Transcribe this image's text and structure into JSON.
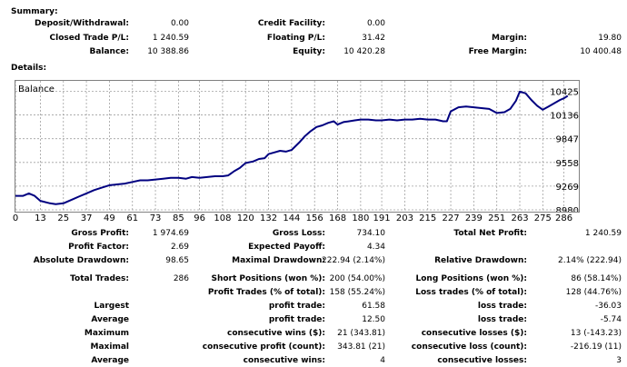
{
  "summary": {
    "title": "Summary:",
    "rows": [
      [
        {
          "label": "Deposit/Withdrawal:",
          "value": "0.00"
        },
        {
          "label": "Credit Facility:",
          "value": "0.00"
        },
        {
          "label": "",
          "value": ""
        }
      ],
      [
        {
          "label": "Closed Trade P/L:",
          "value": "1 240.59"
        },
        {
          "label": "Floating P/L:",
          "value": "31.42"
        },
        {
          "label": "Margin:",
          "value": "19.80"
        }
      ],
      [
        {
          "label": "Balance:",
          "value": "10 388.86"
        },
        {
          "label": "Equity:",
          "value": "10 420.28"
        },
        {
          "label": "Free Margin:",
          "value": "10 400.48"
        }
      ]
    ]
  },
  "details": {
    "title": "Details:",
    "rows": [
      [
        {
          "label": "Gross Profit:",
          "value": "1 974.69"
        },
        {
          "label": "Gross Loss:",
          "value": "734.10"
        },
        {
          "label": "Total Net Profit:",
          "value": "1 240.59"
        }
      ],
      [
        {
          "label": "Profit Factor:",
          "value": "2.69"
        },
        {
          "label": "Expected Payoff:",
          "value": "4.34"
        },
        {
          "label": "",
          "value": ""
        }
      ],
      [
        {
          "label": "Absolute Drawdown:",
          "value": "98.65"
        },
        {
          "label": "Maximal Drawdown:",
          "value": "222.94 (2.14%)"
        },
        {
          "label": "Relative Drawdown:",
          "value": "2.14% (222.94)"
        }
      ]
    ]
  },
  "trades": {
    "rows": [
      [
        {
          "label": "Total Trades:",
          "value": "286"
        },
        {
          "label": "Short Positions (won %):",
          "value": "200 (54.00%)"
        },
        {
          "label": "Long Positions (won %):",
          "value": "86 (58.14%)"
        }
      ],
      [
        {
          "label": "",
          "value": ""
        },
        {
          "label": "Profit Trades (% of total):",
          "value": "158 (55.24%)"
        },
        {
          "label": "Loss trades (% of total):",
          "value": "128 (44.76%)"
        }
      ],
      [
        {
          "label": "Largest",
          "value": ""
        },
        {
          "label": "profit trade:",
          "value": "61.58"
        },
        {
          "label": "loss trade:",
          "value": "-36.03"
        }
      ],
      [
        {
          "label": "Average",
          "value": ""
        },
        {
          "label": "profit trade:",
          "value": "12.50"
        },
        {
          "label": "loss trade:",
          "value": "-5.74"
        }
      ],
      [
        {
          "label": "Maximum",
          "value": ""
        },
        {
          "label": "consecutive wins ($):",
          "value": "21 (343.81)"
        },
        {
          "label": "consecutive losses ($):",
          "value": "13 (-143.23)"
        }
      ],
      [
        {
          "label": "Maximal",
          "value": ""
        },
        {
          "label": "consecutive profit (count):",
          "value": "343.81 (21)"
        },
        {
          "label": "consecutive loss (count):",
          "value": "-216.19 (11)"
        }
      ],
      [
        {
          "label": "Average",
          "value": ""
        },
        {
          "label": "consecutive wins:",
          "value": "4"
        },
        {
          "label": "consecutive losses:",
          "value": "3"
        }
      ]
    ]
  },
  "chart_data": {
    "type": "line",
    "title": "Balance",
    "line_color": "#000080",
    "x_ticks": [
      0,
      13,
      25,
      37,
      49,
      61,
      73,
      85,
      96,
      108,
      120,
      132,
      144,
      156,
      168,
      180,
      191,
      203,
      215,
      227,
      239,
      251,
      263,
      275,
      286
    ],
    "y_ticks": [
      8980,
      9269,
      9558,
      9847,
      10136,
      10425
    ],
    "xlim": [
      0,
      290
    ],
    "ylim": [
      8980,
      10530
    ],
    "series": [
      {
        "x": [
          0,
          4,
          7,
          10,
          13,
          18,
          21,
          25,
          29,
          33,
          37,
          41,
          45,
          49,
          53,
          57,
          61,
          65,
          69,
          73,
          77,
          81,
          85,
          89,
          92,
          96,
          100,
          104,
          108,
          111,
          114,
          117,
          120,
          124,
          127,
          130,
          132,
          135,
          138,
          141,
          144,
          148,
          151,
          154,
          157,
          160,
          163,
          166,
          168,
          171,
          174,
          177,
          180,
          184,
          188,
          191,
          195,
          199,
          203,
          207,
          211,
          215,
          219,
          223,
          225,
          227,
          231,
          235,
          239,
          243,
          247,
          251,
          255,
          258,
          261,
          263,
          266,
          269,
          272,
          275,
          278,
          281,
          284,
          286,
          288
        ],
        "y": [
          9150,
          9150,
          9180,
          9150,
          9090,
          9060,
          9050,
          9060,
          9100,
          9140,
          9180,
          9220,
          9250,
          9280,
          9290,
          9300,
          9320,
          9340,
          9340,
          9350,
          9360,
          9370,
          9370,
          9360,
          9380,
          9370,
          9380,
          9390,
          9390,
          9400,
          9450,
          9490,
          9550,
          9570,
          9600,
          9610,
          9660,
          9680,
          9700,
          9690,
          9710,
          9800,
          9880,
          9940,
          9990,
          10010,
          10040,
          10060,
          10020,
          10050,
          10060,
          10070,
          10080,
          10080,
          10070,
          10070,
          10080,
          10070,
          10080,
          10080,
          10090,
          10080,
          10080,
          10060,
          10060,
          10180,
          10230,
          10240,
          10230,
          10220,
          10210,
          10160,
          10170,
          10210,
          10310,
          10420,
          10400,
          10320,
          10250,
          10200,
          10240,
          10280,
          10320,
          10340,
          10370
        ]
      }
    ]
  }
}
